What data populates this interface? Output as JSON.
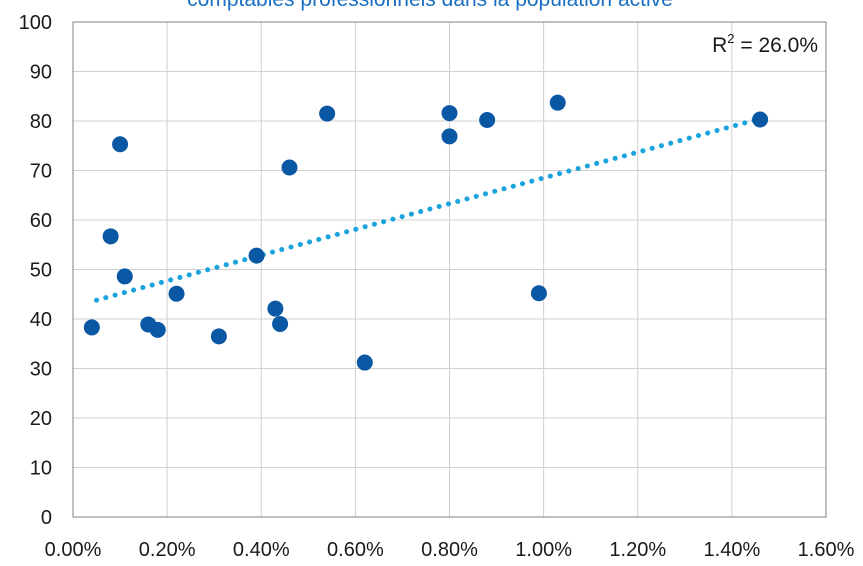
{
  "chart_data": {
    "type": "scatter",
    "title": "comptables professionnels dans la population active",
    "xlabel": "",
    "ylabel": "",
    "xlim": [
      0,
      0.016
    ],
    "ylim": [
      0,
      100
    ],
    "x_ticks": [
      "0.00%",
      "0.20%",
      "0.40%",
      "0.60%",
      "0.80%",
      "1.00%",
      "1.20%",
      "1.40%",
      "1.60%"
    ],
    "y_ticks": [
      "0",
      "10",
      "20",
      "30",
      "40",
      "50",
      "60",
      "70",
      "80",
      "90",
      "100"
    ],
    "grid": true,
    "points": [
      {
        "x": 0.0004,
        "y": 38.3
      },
      {
        "x": 0.0008,
        "y": 56.7
      },
      {
        "x": 0.001,
        "y": 75.3
      },
      {
        "x": 0.0011,
        "y": 48.6
      },
      {
        "x": 0.0016,
        "y": 38.9
      },
      {
        "x": 0.0018,
        "y": 37.8
      },
      {
        "x": 0.0022,
        "y": 45.1
      },
      {
        "x": 0.0031,
        "y": 36.5
      },
      {
        "x": 0.0039,
        "y": 52.8
      },
      {
        "x": 0.0043,
        "y": 42.1
      },
      {
        "x": 0.0044,
        "y": 39.0
      },
      {
        "x": 0.0046,
        "y": 70.6
      },
      {
        "x": 0.0054,
        "y": 81.5
      },
      {
        "x": 0.0062,
        "y": 31.2
      },
      {
        "x": 0.008,
        "y": 81.6
      },
      {
        "x": 0.008,
        "y": 76.9
      },
      {
        "x": 0.0088,
        "y": 80.2
      },
      {
        "x": 0.0099,
        "y": 45.2
      },
      {
        "x": 0.0103,
        "y": 83.7
      },
      {
        "x": 0.0146,
        "y": 80.3
      }
    ],
    "trendline": {
      "type": "linear",
      "style": "dotted",
      "x": [
        0.0005,
        0.0145
      ],
      "y": [
        43.8,
        80.2
      ]
    },
    "annotation": {
      "prefix": "R",
      "superscript": "2",
      "suffix": " = 26.0%"
    },
    "colors": {
      "points": "#0a57a4",
      "trendline": "#1aa3dc",
      "title": "#1b6fc2",
      "grid": "#cfcfcf",
      "axis": "#808080"
    }
  }
}
